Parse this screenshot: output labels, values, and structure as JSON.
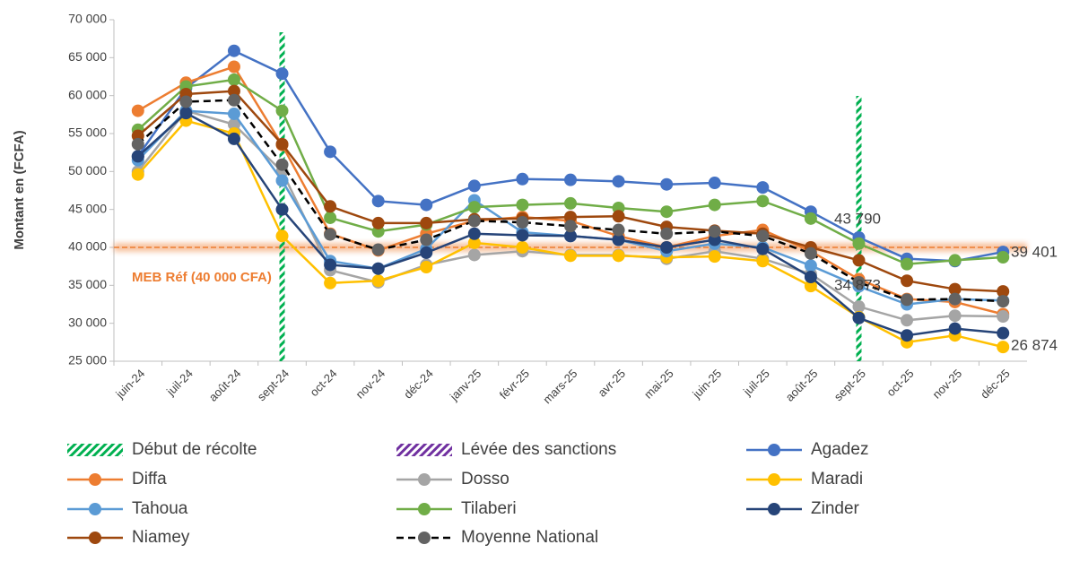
{
  "chart_data": {
    "type": "line",
    "y_label": "Montant en (FCFA)",
    "categories": [
      "juin-24",
      "juil-24",
      "août-24",
      "sept-24",
      "oct-24",
      "nov-24",
      "déc-24",
      "janv-25",
      "févr-25",
      "mars-25",
      "avr-25",
      "mai-25",
      "juin-25",
      "juil-25",
      "août-25",
      "sept-25",
      "oct-25",
      "nov-25",
      "déc-25"
    ],
    "ylim": [
      25000,
      70000
    ],
    "yticks": [
      {
        "value": 25000,
        "label": "25 000"
      },
      {
        "value": 30000,
        "label": "30 000"
      },
      {
        "value": 35000,
        "label": "35 000"
      },
      {
        "value": 40000,
        "label": "40 000"
      },
      {
        "value": 45000,
        "label": "45 000"
      },
      {
        "value": 50000,
        "label": "50 000"
      },
      {
        "value": 55000,
        "label": "55 000"
      },
      {
        "value": 60000,
        "label": "60 000"
      },
      {
        "value": 65000,
        "label": "65 000"
      },
      {
        "value": 70000,
        "label": "70 000"
      }
    ],
    "markers": [
      {
        "name": "Début de récolte",
        "color": "#00b050",
        "at": [
          "sept-24",
          "sept-25"
        ]
      },
      {
        "name": "Lévée des sanctions",
        "color": "#7030a0",
        "at": []
      }
    ],
    "reference": {
      "value": 40000,
      "label": "MEB Réf (40 000 CFA)",
      "color": "#ed7d31"
    },
    "annotations": [
      "43 790",
      "34 873",
      "39 401",
      "26 874"
    ],
    "series": [
      {
        "name": "Agadez",
        "color": "#4472c4",
        "values": [
          52000,
          61000,
          65900,
          62900,
          52600,
          46100,
          45600,
          48100,
          49000,
          48900,
          48700,
          48300,
          48500,
          47900,
          44700,
          41300,
          38500,
          38200,
          39401
        ]
      },
      {
        "name": "Diffa",
        "color": "#ed7d31",
        "values": [
          58000,
          61700,
          63800,
          53500,
          41800,
          39600,
          41800,
          43500,
          44000,
          43500,
          41500,
          40000,
          41500,
          42300,
          39500,
          35800,
          33200,
          32800,
          31200
        ]
      },
      {
        "name": "Dosso",
        "color": "#a5a5a5",
        "values": [
          50000,
          58000,
          56200,
          50000,
          37000,
          35400,
          37700,
          39000,
          39500,
          39000,
          39000,
          38500,
          39500,
          38500,
          36500,
          32200,
          30400,
          31000,
          30900
        ]
      },
      {
        "name": "Maradi",
        "color": "#ffc000",
        "values": [
          49600,
          56700,
          55000,
          41500,
          35300,
          35600,
          37400,
          40600,
          40000,
          38900,
          38900,
          38700,
          38800,
          38200,
          34900,
          30800,
          27500,
          28400,
          26874
        ]
      },
      {
        "name": "Tahoua",
        "color": "#5b9bd5",
        "values": [
          51500,
          58000,
          57600,
          48800,
          38200,
          37200,
          39800,
          46200,
          42000,
          41500,
          41000,
          39500,
          40500,
          40000,
          37600,
          34873,
          32500,
          33200,
          33000
        ]
      },
      {
        "name": "Tilaberi",
        "color": "#70ad47",
        "values": [
          55500,
          61200,
          62100,
          58000,
          43900,
          42100,
          43000,
          45300,
          45600,
          45800,
          45200,
          44700,
          45600,
          46100,
          43800,
          40500,
          37800,
          38300,
          38700
        ]
      },
      {
        "name": "Zinder",
        "color": "#264478",
        "values": [
          52000,
          57700,
          54300,
          45000,
          37700,
          37200,
          39300,
          41800,
          41600,
          41500,
          41000,
          40000,
          41000,
          39800,
          36100,
          30700,
          28400,
          29300,
          28700
        ]
      },
      {
        "name": "Niamey",
        "color": "#9e480e",
        "values": [
          54700,
          60200,
          60600,
          53600,
          45400,
          43200,
          43200,
          43700,
          43800,
          44000,
          44100,
          42700,
          42200,
          41800,
          40000,
          38300,
          35600,
          34500,
          34200
        ]
      },
      {
        "name": "Moyenne National",
        "color": "#636363",
        "dash": true,
        "values": [
          53600,
          59200,
          59400,
          50900,
          41700,
          39700,
          41000,
          43500,
          43300,
          42800,
          42300,
          41800,
          42100,
          41500,
          39200,
          35400,
          33100,
          33200,
          32900
        ]
      }
    ]
  }
}
